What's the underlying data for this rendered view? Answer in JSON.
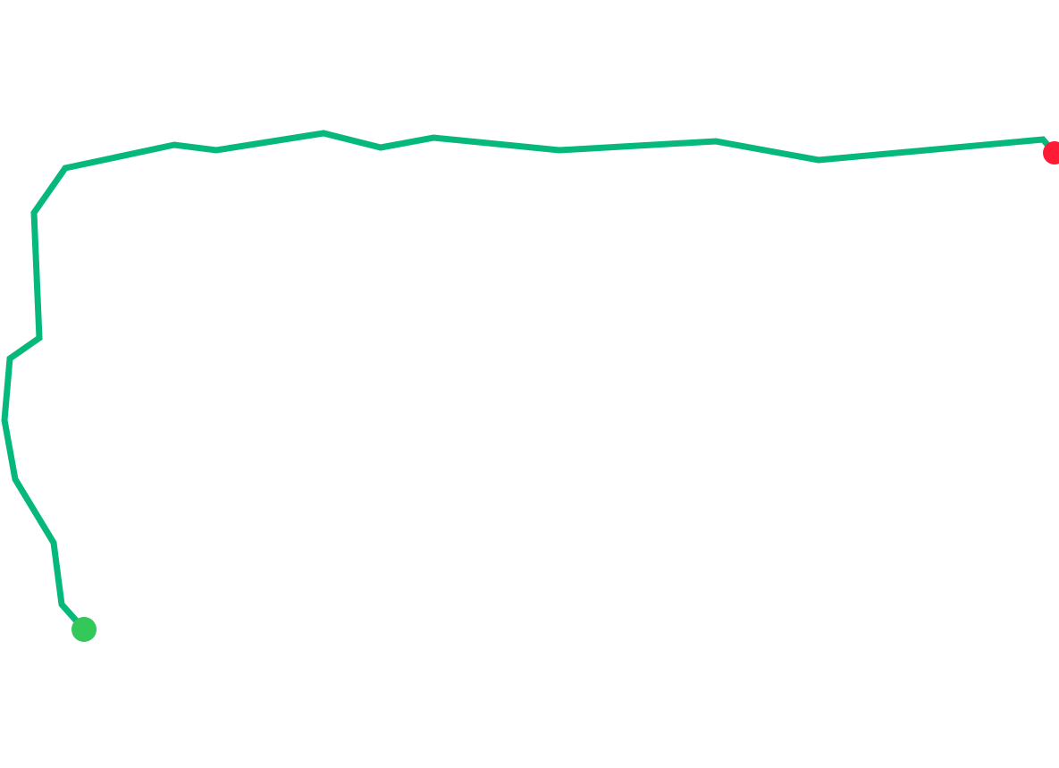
{
  "map": {
    "background_color": "#ffffff",
    "route": {
      "color": "#06b97a"
    },
    "start_marker": {
      "icon": "start-point-icon",
      "color": "#34c759"
    },
    "end_marker": {
      "icon": "end-point-icon",
      "color": "#ff1a35"
    }
  }
}
